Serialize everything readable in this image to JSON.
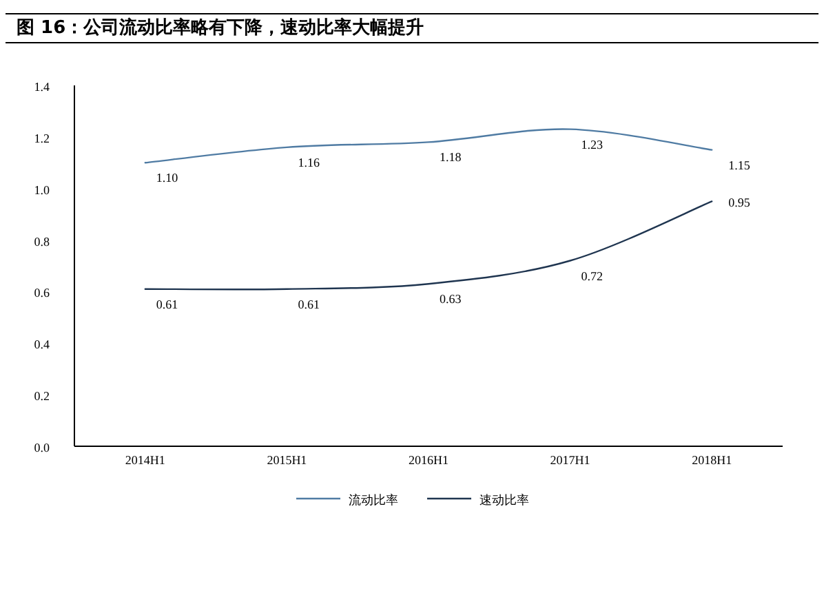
{
  "chart_data": {
    "type": "line",
    "title": "图 16：公司流动比率略有下降，速动比率大幅提升",
    "categories": [
      "2014H1",
      "2015H1",
      "2016H1",
      "2017H1",
      "2018H1"
    ],
    "series": [
      {
        "name": "流动比率",
        "color": "#4f7ba3",
        "values": [
          1.1,
          1.16,
          1.18,
          1.23,
          1.15
        ],
        "value_labels": [
          "1.10",
          "1.16",
          "1.18",
          "1.23",
          "1.15"
        ]
      },
      {
        "name": "速动比率",
        "color": "#1f3550",
        "values": [
          0.61,
          0.61,
          0.63,
          0.72,
          0.95
        ],
        "value_labels": [
          "0.61",
          "0.61",
          "0.63",
          "0.72",
          "0.95"
        ]
      }
    ],
    "ylim": [
      0,
      1.4
    ],
    "yticks": [
      {
        "value": 0,
        "label": "0.0"
      },
      {
        "value": 0.2,
        "label": "0.2"
      },
      {
        "value": 0.4,
        "label": "0.4"
      },
      {
        "value": 0.6,
        "label": "0.6"
      },
      {
        "value": 0.8,
        "label": "0.8"
      },
      {
        "value": 1.0,
        "label": "1.0"
      },
      {
        "value": 1.2,
        "label": "1.2"
      },
      {
        "value": 1.4,
        "label": "1.4"
      }
    ],
    "grid": false,
    "legend": "bottom",
    "marker": "none",
    "line_style": "solid"
  }
}
